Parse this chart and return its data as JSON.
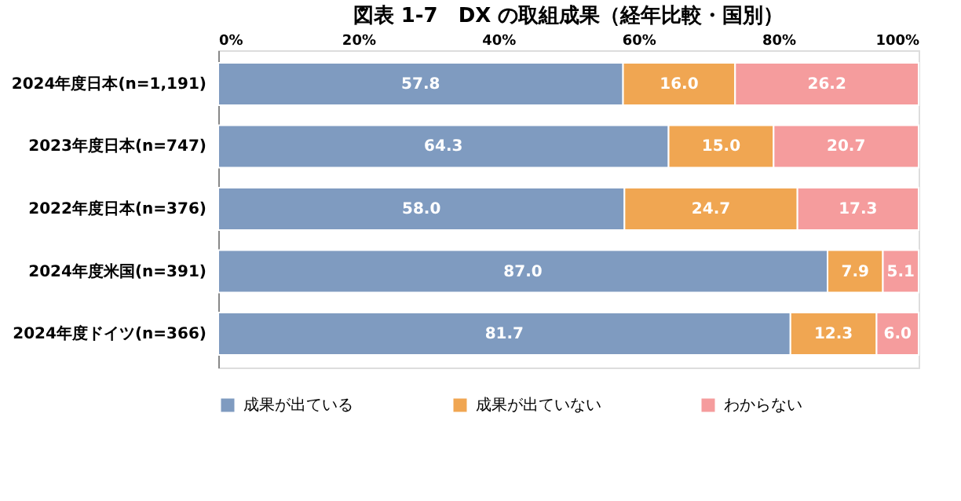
{
  "chart_data": {
    "type": "bar",
    "orientation": "horizontal",
    "stacked": true,
    "title": "図表 1-7　DX の取組成果（経年比較・国別）",
    "categories": [
      "2024年度日本(n=1,191)",
      "2023年度日本(n=747)",
      "2022年度日本(n=376)",
      "2024年度米国(n=391)",
      "2024年度ドイツ(n=366)"
    ],
    "series": [
      {
        "name": "成果が出ている",
        "color": "#7f9bc0",
        "values": [
          57.8,
          64.3,
          58.0,
          87.0,
          81.7
        ],
        "value_labels": [
          "57.8",
          "64.3",
          "58.0",
          "87.0",
          "81.7"
        ]
      },
      {
        "name": "成果が出ていない",
        "color": "#f0a652",
        "values": [
          16.0,
          15.0,
          24.7,
          7.9,
          12.3
        ],
        "value_labels": [
          "16.0",
          "15.0",
          "24.7",
          "7.9",
          "12.3"
        ]
      },
      {
        "name": "わからない",
        "color": "#f59c9d",
        "values": [
          26.2,
          20.7,
          17.3,
          5.1,
          6.0
        ],
        "value_labels": [
          "26.2",
          "20.7",
          "17.3",
          "5.1",
          "6.0"
        ]
      }
    ],
    "xlim": [
      0,
      100
    ],
    "xticks": [
      {
        "value": 0,
        "label": "0%"
      },
      {
        "value": 20,
        "label": "20%"
      },
      {
        "value": 40,
        "label": "40%"
      },
      {
        "value": 60,
        "label": "60%"
      },
      {
        "value": 80,
        "label": "80%"
      },
      {
        "value": 100,
        "label": "100%"
      }
    ],
    "legend": "bottom",
    "grid": false
  }
}
